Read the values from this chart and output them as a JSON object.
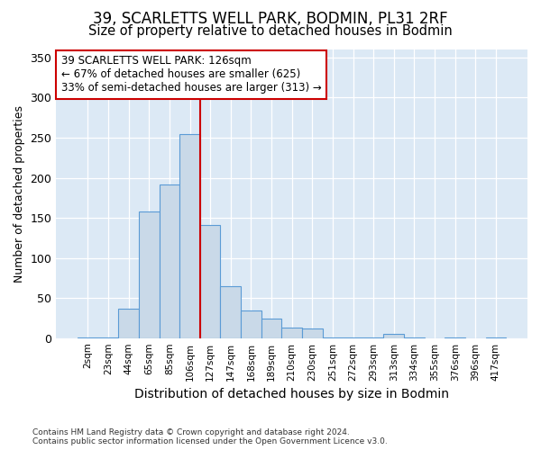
{
  "title1": "39, SCARLETTS WELL PARK, BODMIN, PL31 2RF",
  "title2": "Size of property relative to detached houses in Bodmin",
  "xlabel": "Distribution of detached houses by size in Bodmin",
  "ylabel": "Number of detached properties",
  "footnote1": "Contains HM Land Registry data © Crown copyright and database right 2024.",
  "footnote2": "Contains public sector information licensed under the Open Government Licence v3.0.",
  "bar_labels": [
    "2sqm",
    "23sqm",
    "44sqm",
    "65sqm",
    "85sqm",
    "106sqm",
    "127sqm",
    "147sqm",
    "168sqm",
    "189sqm",
    "210sqm",
    "230sqm",
    "251sqm",
    "272sqm",
    "293sqm",
    "313sqm",
    "334sqm",
    "355sqm",
    "376sqm",
    "396sqm",
    "417sqm"
  ],
  "bar_values": [
    1,
    1,
    37,
    158,
    192,
    255,
    141,
    65,
    35,
    24,
    13,
    12,
    1,
    1,
    1,
    5,
    1,
    0,
    1,
    0,
    1
  ],
  "bar_color": "#c9d9e8",
  "bar_edge_color": "#5b9bd5",
  "highlight_line_index": 6,
  "highlight_line_color": "#cc0000",
  "annotation_text": "39 SCARLETTS WELL PARK: 126sqm\n← 67% of detached houses are smaller (625)\n33% of semi-detached houses are larger (313) →",
  "annotation_box_color": "#ffffff",
  "annotation_box_edge": "#cc0000",
  "ylim": [
    0,
    360
  ],
  "yticks": [
    0,
    50,
    100,
    150,
    200,
    250,
    300,
    350
  ],
  "fig_bg_color": "#ffffff",
  "plot_bg_color": "#dce9f5",
  "grid_color": "#ffffff",
  "title1_fontsize": 12,
  "title2_fontsize": 10.5,
  "xlabel_fontsize": 10,
  "ylabel_fontsize": 9,
  "bar_width": 1.0
}
